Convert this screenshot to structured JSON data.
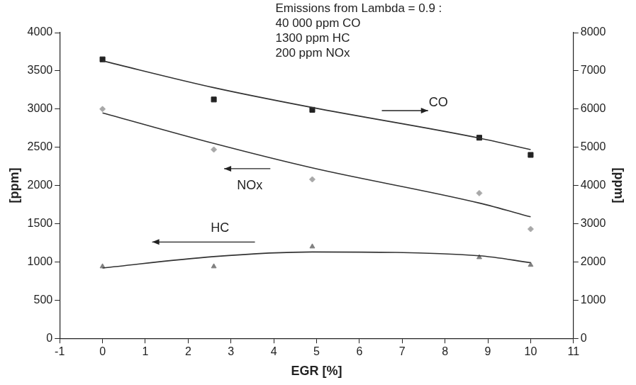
{
  "chart_data": {
    "type": "scatter",
    "annotations": [
      "Emissions from Lambda = 0.9 :",
      "40 000 ppm CO",
      "1300 ppm HC",
      "200 ppm NOx"
    ],
    "x_label": "EGR [%]",
    "y_label": "[ppm]",
    "y2_label": "[ppm]",
    "x": [
      0,
      2.6,
      4.9,
      8.8,
      10
    ],
    "series": [
      {
        "name": "CO",
        "axis": "y2",
        "marker": "square",
        "color": "#222222",
        "values": [
          7300,
          6250,
          5980,
          5250,
          4800
        ],
        "trend": [
          7260,
          6560,
          6040,
          5240,
          4940
        ]
      },
      {
        "name": "NOx",
        "marker": "diamond",
        "color": "#a8a8a8",
        "values": [
          3000,
          2470,
          2080,
          1900,
          1430
        ],
        "trend": [
          2950,
          2550,
          2230,
          1770,
          1590
        ]
      },
      {
        "name": "HC",
        "marker": "triangle",
        "color": "#808080",
        "values": [
          940,
          940,
          1200,
          1060,
          960
        ],
        "trend": [
          920,
          1070,
          1130,
          1080,
          990
        ]
      }
    ],
    "xlim": [
      -1,
      11
    ],
    "xticks": [
      -1,
      0,
      1,
      2,
      3,
      4,
      5,
      6,
      7,
      8,
      9,
      10,
      11
    ],
    "ylim": [
      0,
      4000
    ],
    "yticks": [
      0,
      500,
      1000,
      1500,
      2000,
      2500,
      3000,
      3500,
      4000
    ],
    "y2lim": [
      0,
      8000
    ],
    "y2ticks": [
      0,
      1000,
      2000,
      3000,
      4000,
      5000,
      6000,
      7000,
      8000
    ],
    "grid": false
  }
}
